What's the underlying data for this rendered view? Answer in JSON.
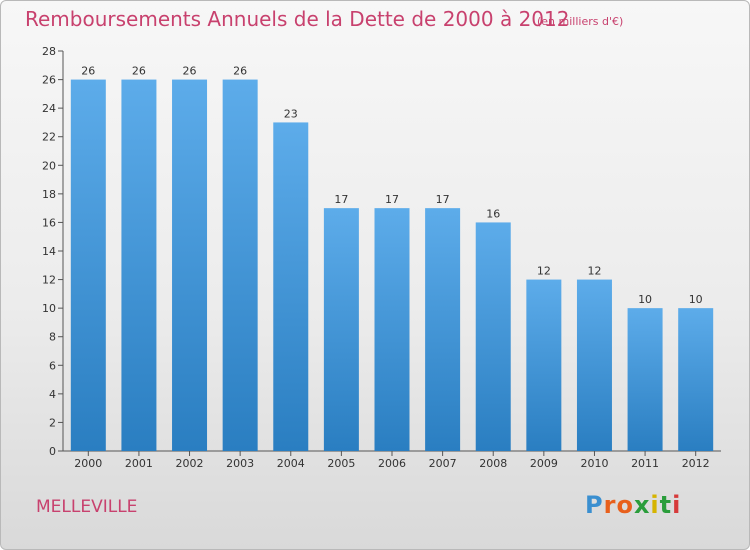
{
  "header": {
    "title": "Remboursements Annuels de la Dette de 2000 à 2012",
    "subtitle": "(en milliers d'€)"
  },
  "footer": {
    "commune": "MELLEVILLE",
    "logo_text": "Proxiti"
  },
  "colors": {
    "text_accent": "#c8416e",
    "bar_top": "#5dacea",
    "bar_bottom": "#2a7ec1",
    "axis": "#555555",
    "logo_letters": [
      "#3a8fd0",
      "#e8601c",
      "#e8601c",
      "#2a9d3b",
      "#d6b400",
      "#2a9d3b",
      "#d63b3b"
    ]
  },
  "chart_data": {
    "type": "bar",
    "categories": [
      "2000",
      "2001",
      "2002",
      "2003",
      "2004",
      "2005",
      "2006",
      "2007",
      "2008",
      "2009",
      "2010",
      "2011",
      "2012"
    ],
    "values": [
      26,
      26,
      26,
      26,
      23,
      17,
      17,
      17,
      16,
      12,
      12,
      10,
      10
    ],
    "title": "Remboursements Annuels de la Dette de 2000 à 2012",
    "xlabel": "",
    "ylabel": "",
    "ylim": [
      0,
      28
    ],
    "yticks": [
      0,
      2,
      4,
      6,
      8,
      10,
      12,
      14,
      16,
      18,
      20,
      22,
      24,
      26,
      28
    ],
    "grid": false,
    "data_labels": true
  }
}
